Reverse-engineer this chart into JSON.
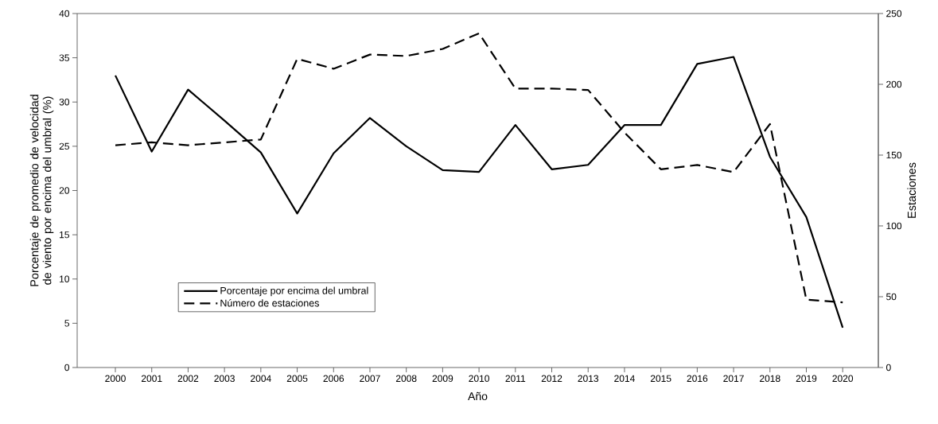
{
  "chart_data": {
    "type": "line",
    "xlabel": "Año",
    "ylabel": "Porcentaje de promedio de velocidad de viento por encima del umbral (%)",
    "y2label": "Estaciones",
    "categories": [
      "2000",
      "2001",
      "2002",
      "2003",
      "2004",
      "2005",
      "2006",
      "2007",
      "2008",
      "2009",
      "2010",
      "2011",
      "2012",
      "2013",
      "2014",
      "2015",
      "2016",
      "2017",
      "2018",
      "2019",
      "2020"
    ],
    "series": [
      {
        "name": "Porcentaje por encima del umbral",
        "color": "#000000",
        "line_style": "solid",
        "values": [
          33.0,
          24.4,
          31.4,
          27.9,
          24.3,
          17.4,
          24.2,
          28.2,
          25.0,
          22.3,
          22.1,
          27.4,
          22.4,
          22.9,
          27.4,
          27.4,
          34.3,
          35.1,
          23.8,
          17.0,
          4.5
        ]
      },
      {
        "name": "Número de estaciones",
        "color": "#000000",
        "line_style": "dashed",
        "axis": "y2",
        "values": [
          157,
          159,
          157,
          159,
          161,
          218,
          211,
          221,
          220,
          225,
          236,
          197,
          197,
          196,
          166,
          140,
          143,
          138,
          172,
          48,
          46
        ]
      }
    ],
    "ylim": [
      0,
      40
    ],
    "yticks": [
      0,
      5,
      10,
      15,
      20,
      25,
      30,
      35,
      40
    ],
    "y2lim": [
      0,
      250
    ],
    "y2ticks": [
      0,
      50,
      100,
      150,
      200,
      250
    ],
    "legend": "bottom left"
  }
}
